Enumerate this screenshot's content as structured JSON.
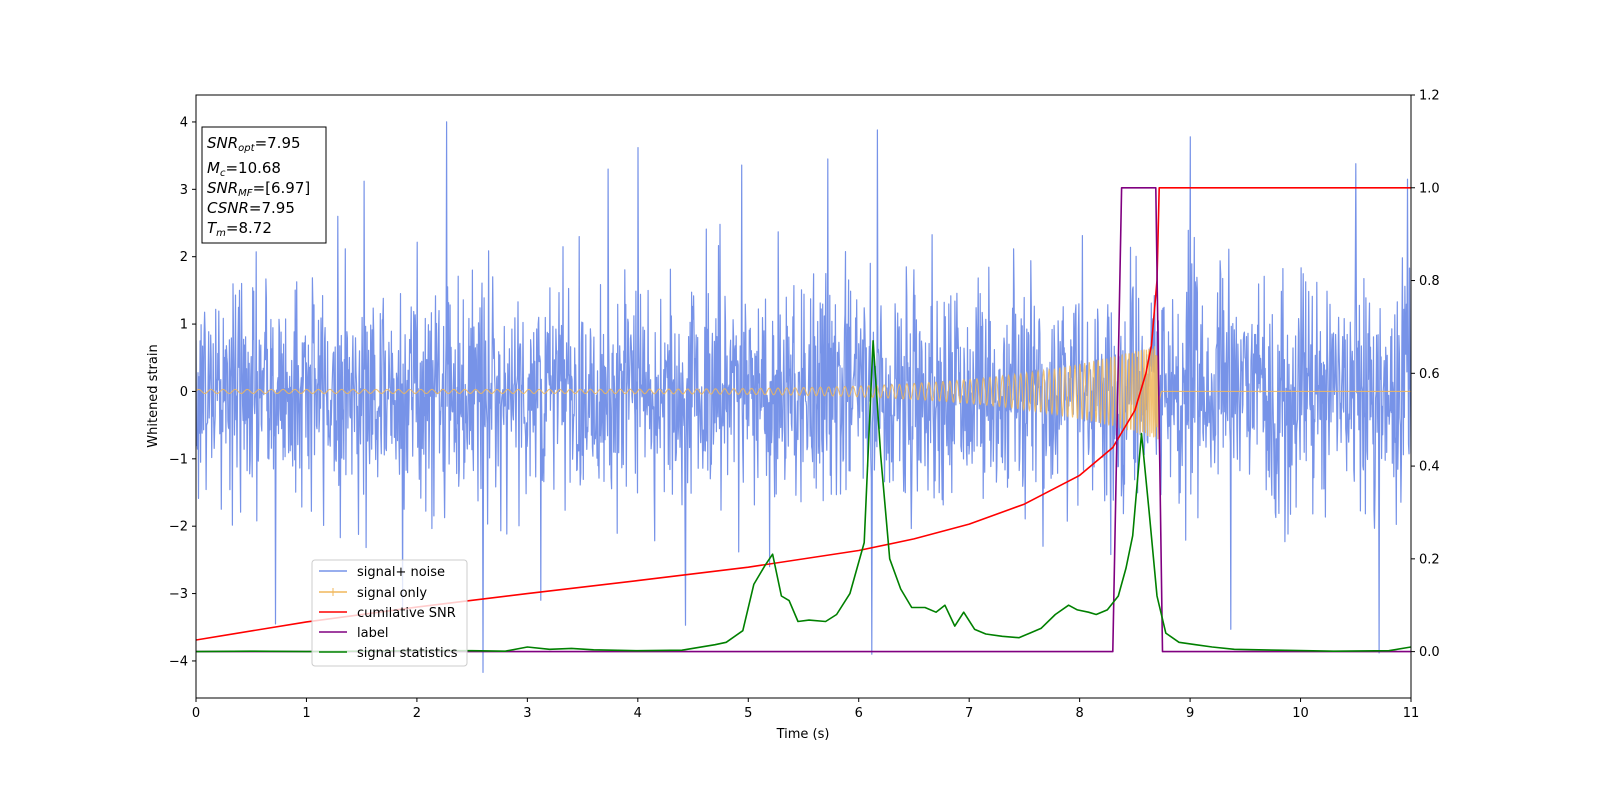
{
  "chart_data": {
    "type": "line",
    "xlabel": "Time (s)",
    "ylabel": "Whitened strain",
    "xlim": [
      0,
      11
    ],
    "ylim": [
      -4.55,
      4.4
    ],
    "y2lim": [
      -0.1,
      1.2
    ],
    "x_ticks": [
      0,
      1,
      2,
      3,
      4,
      5,
      6,
      7,
      8,
      9,
      10,
      11
    ],
    "y_ticks": [
      -4,
      -3,
      -2,
      -1,
      0,
      1,
      2,
      3,
      4
    ],
    "y2_ticks": [
      0.0,
      0.2,
      0.4,
      0.6,
      0.8,
      1.0,
      1.2
    ],
    "grid": false,
    "legend_placement": "lower-left",
    "annotation": {
      "snr_opt": {
        "sym": "SNR",
        "sub": "opt",
        "value": "=7.95"
      },
      "mc": {
        "sym": "M",
        "sub": "c",
        "value": "=10.68"
      },
      "snr_mf": {
        "sym": "SNR",
        "sub": "MF",
        "value": "=[6.97]"
      },
      "csnr": {
        "sym": "CSNR",
        "value": "=7.95"
      },
      "tm": {
        "sym": "T",
        "sub": "m",
        "value": "=8.72"
      }
    },
    "series": [
      {
        "name": "signal+ noise",
        "axis": "left",
        "color": "#7793e8",
        "kind": "noise",
        "sigma": 0.82,
        "span": [
          0,
          11
        ],
        "spikes": [
          [
            2.27,
            4.0
          ],
          [
            6.17,
            3.88
          ],
          [
            9.0,
            3.78
          ],
          [
            10.97,
            3.15
          ],
          [
            4.0,
            3.62
          ],
          [
            1.52,
            3.12
          ],
          [
            3.73,
            3.3
          ],
          [
            4.94,
            3.36
          ],
          [
            10.5,
            3.38
          ],
          [
            5.72,
            3.45
          ],
          [
            2.6,
            -4.17
          ],
          [
            0.72,
            -3.45
          ],
          [
            6.12,
            -3.9
          ],
          [
            4.43,
            -3.47
          ],
          [
            9.37,
            -3.53
          ],
          [
            10.71,
            -3.88
          ],
          [
            1.87,
            -3.25
          ],
          [
            3.12,
            -3.1
          ],
          [
            8.28,
            -2.42
          ]
        ]
      },
      {
        "name": "signal only",
        "axis": "left",
        "color": "#f0b75b",
        "kind": "chirp",
        "span": [
          0,
          8.72
        ],
        "amp_start": 0.03,
        "amp_end": 0.72
      },
      {
        "name": "cumilative SNR",
        "axis": "right",
        "color": "#ff0000",
        "x": [
          0,
          1,
          2,
          3,
          4,
          5,
          6,
          6.5,
          7,
          7.5,
          8,
          8.3,
          8.5,
          8.6,
          8.65,
          8.7,
          8.72,
          11
        ],
        "values": [
          0.025,
          0.064,
          0.096,
          0.125,
          0.153,
          0.182,
          0.218,
          0.243,
          0.275,
          0.318,
          0.38,
          0.44,
          0.52,
          0.6,
          0.66,
          0.8,
          1.0,
          1.0
        ]
      },
      {
        "name": "label",
        "axis": "right",
        "color": "#800080",
        "x": [
          0,
          8.3,
          8.38,
          8.69,
          8.75,
          11
        ],
        "values": [
          0.0,
          0.0,
          1.0,
          1.0,
          0.0,
          0.0
        ]
      },
      {
        "name": "signal statistics",
        "axis": "right",
        "color": "#008000",
        "x": [
          0,
          0.5,
          1,
          1.5,
          2,
          2.5,
          2.8,
          3.0,
          3.2,
          3.4,
          3.6,
          4.0,
          4.4,
          4.7,
          4.8,
          4.95,
          5.05,
          5.15,
          5.22,
          5.3,
          5.37,
          5.45,
          5.55,
          5.7,
          5.8,
          5.92,
          6.05,
          6.13,
          6.2,
          6.28,
          6.38,
          6.48,
          6.6,
          6.7,
          6.78,
          6.87,
          6.95,
          7.05,
          7.15,
          7.3,
          7.45,
          7.55,
          7.65,
          7.78,
          7.9,
          7.98,
          8.08,
          8.15,
          8.25,
          8.35,
          8.42,
          8.48,
          8.56,
          8.63,
          8.7,
          8.78,
          8.9,
          9.05,
          9.2,
          9.4,
          9.8,
          10.3,
          10.8,
          11
        ],
        "values": [
          0.0,
          0.001,
          0.0,
          0.001,
          0.002,
          0.002,
          0.001,
          0.01,
          0.005,
          0.007,
          0.004,
          0.002,
          0.003,
          0.015,
          0.02,
          0.045,
          0.145,
          0.185,
          0.21,
          0.12,
          0.11,
          0.065,
          0.068,
          0.065,
          0.08,
          0.125,
          0.235,
          0.67,
          0.42,
          0.2,
          0.135,
          0.095,
          0.095,
          0.085,
          0.1,
          0.055,
          0.085,
          0.048,
          0.038,
          0.033,
          0.03,
          0.04,
          0.05,
          0.08,
          0.1,
          0.09,
          0.085,
          0.08,
          0.09,
          0.12,
          0.18,
          0.25,
          0.47,
          0.3,
          0.12,
          0.04,
          0.02,
          0.015,
          0.01,
          0.005,
          0.003,
          0.001,
          0.002,
          0.01
        ]
      }
    ]
  }
}
